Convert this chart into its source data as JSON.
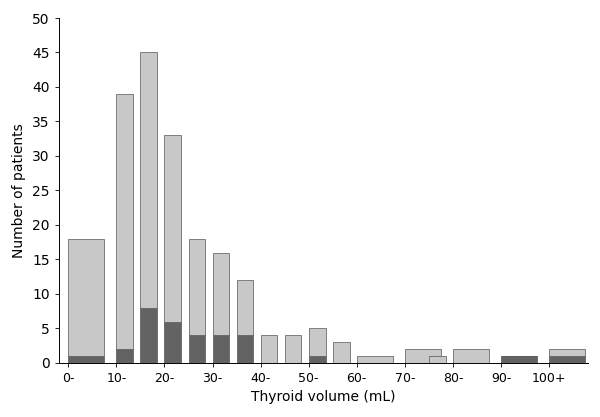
{
  "categories": [
    "0-",
    "10-",
    "20-",
    "30-",
    "40-",
    "50-",
    "60-",
    "70-",
    "80-",
    "90-",
    "100+"
  ],
  "total_values": [
    18,
    39,
    45,
    33,
    18,
    16,
    12,
    4,
    4,
    5,
    3,
    1,
    2,
    1,
    2,
    1,
    2
  ],
  "dark_values": [
    1,
    2,
    8,
    6,
    4,
    4,
    4,
    0,
    0,
    1,
    0,
    0,
    0,
    0,
    0,
    1,
    1
  ],
  "x_positions": [
    0,
    10,
    15,
    20,
    25,
    30,
    35,
    40,
    45,
    50,
    55,
    60,
    70,
    75,
    80,
    90,
    100
  ],
  "bin_widths": [
    8,
    4,
    4,
    4,
    4,
    4,
    4,
    4,
    4,
    4,
    4,
    8,
    8,
    4,
    8,
    8,
    8
  ],
  "xtick_positions": [
    0,
    10,
    20,
    30,
    40,
    50,
    60,
    70,
    80,
    90,
    100
  ],
  "xtick_labels": [
    "0-",
    "10-",
    "20-",
    "30-",
    "40-",
    "50-",
    "60-",
    "70-",
    "80-",
    "90-",
    "100+"
  ],
  "light_color": "#c8c8c8",
  "dark_color": "#636363",
  "xlabel": "Thyroid volume (mL)",
  "ylabel": "Number of patients",
  "ylim": [
    0,
    50
  ],
  "yticks": [
    0,
    5,
    10,
    15,
    20,
    25,
    30,
    35,
    40,
    45,
    50
  ],
  "background_color": "#ffffff",
  "edge_color": "#555555"
}
